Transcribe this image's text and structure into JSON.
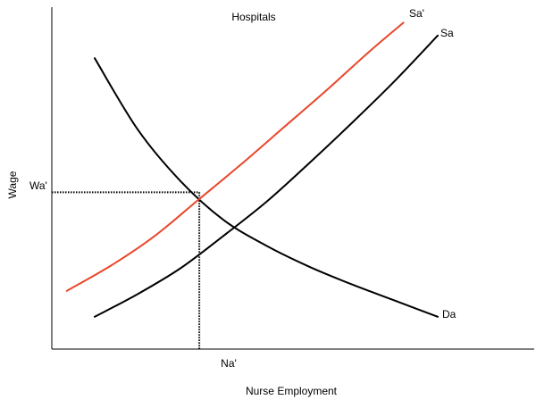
{
  "chart_data": {
    "type": "line",
    "title": "Hospitals",
    "xlabel": "Nurse Employment",
    "ylabel": "Wage",
    "xlim": [
      0,
      100
    ],
    "ylim": [
      0,
      100
    ],
    "grid": false,
    "legend": "none",
    "series": [
      {
        "name": "Da",
        "color": "#000000",
        "x": [
          10,
          20,
          30,
          40,
          50,
          60,
          70,
          80,
          90
        ],
        "y": [
          90,
          68,
          52,
          40,
          32,
          25.5,
          20,
          15,
          10
        ]
      },
      {
        "name": "Sa",
        "color": "#000000",
        "x": [
          10,
          20,
          30,
          40,
          50,
          60,
          70,
          80,
          90
        ],
        "y": [
          10,
          17,
          25,
          35,
          45.5,
          57.5,
          70,
          83,
          97
        ]
      },
      {
        "name": "Sa'",
        "color": "#e8472c",
        "x": [
          3.5,
          14,
          24,
          34,
          44,
          54,
          64,
          74,
          82
        ],
        "y": [
          18,
          26,
          35,
          46,
          57,
          68.5,
          80,
          92,
          101
        ]
      }
    ],
    "reference_lines": [
      {
        "label": "Wa'",
        "axis": "y",
        "value": 48.5,
        "to_x": 34.4,
        "style": "dotted"
      },
      {
        "label": "Na'",
        "axis": "x",
        "value": 34.4,
        "to_y": 48.5,
        "style": "dotted"
      }
    ]
  }
}
